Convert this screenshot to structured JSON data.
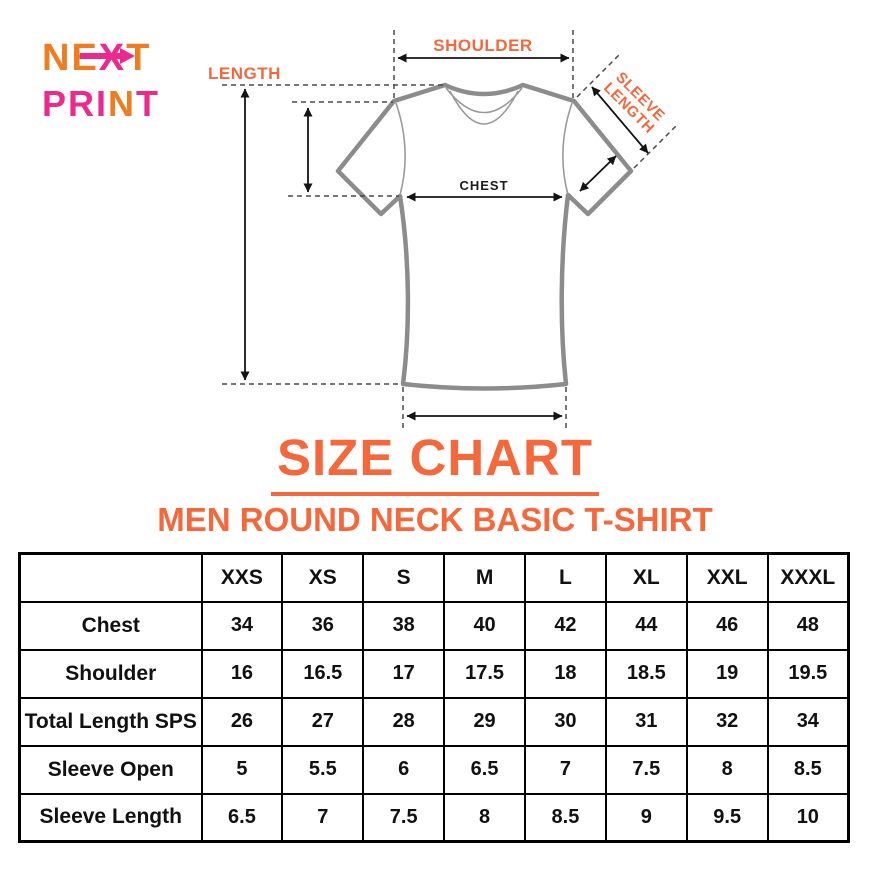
{
  "colors": {
    "accent": "#F4683C",
    "logo_orange": "#EE7D22",
    "logo_pink": "#EC2A8D",
    "table_ink": "#111111",
    "shirt_outline": "#8C8C8C"
  },
  "logo": {
    "top": {
      "a": "NE",
      "b": "X",
      "c": "T"
    },
    "bottom": {
      "a": "PRI",
      "b": "N",
      "c": "T"
    }
  },
  "diagram": {
    "labels": {
      "shoulder": "SHOULDER",
      "length": "LENGTH",
      "chest": "CHEST",
      "sleeve_line1": "SLEEVE",
      "sleeve_line2": "LENGTH"
    }
  },
  "title": "SIZE CHART",
  "subtitle": "MEN ROUND NECK BASIC T-SHIRT",
  "chart_data": {
    "type": "table",
    "columns": [
      "",
      "XXS",
      "XS",
      "S",
      "M",
      "L",
      "XL",
      "XXL",
      "XXXL"
    ],
    "rows": [
      {
        "label": "Chest",
        "values": [
          34,
          36,
          38,
          40,
          42,
          44,
          46,
          48
        ]
      },
      {
        "label": "Shoulder",
        "values": [
          16,
          16.5,
          17,
          17.5,
          18,
          18.5,
          19,
          19.5
        ]
      },
      {
        "label": "Total Length SPS",
        "values": [
          26,
          27,
          28,
          29,
          30,
          31,
          32,
          34
        ]
      },
      {
        "label": "Sleeve Open",
        "values": [
          5,
          5.5,
          6,
          6.5,
          7,
          7.5,
          8,
          8.5
        ]
      },
      {
        "label": "Sleeve Length",
        "values": [
          6.5,
          7,
          7.5,
          8,
          8.5,
          9,
          9.5,
          10
        ]
      }
    ]
  }
}
